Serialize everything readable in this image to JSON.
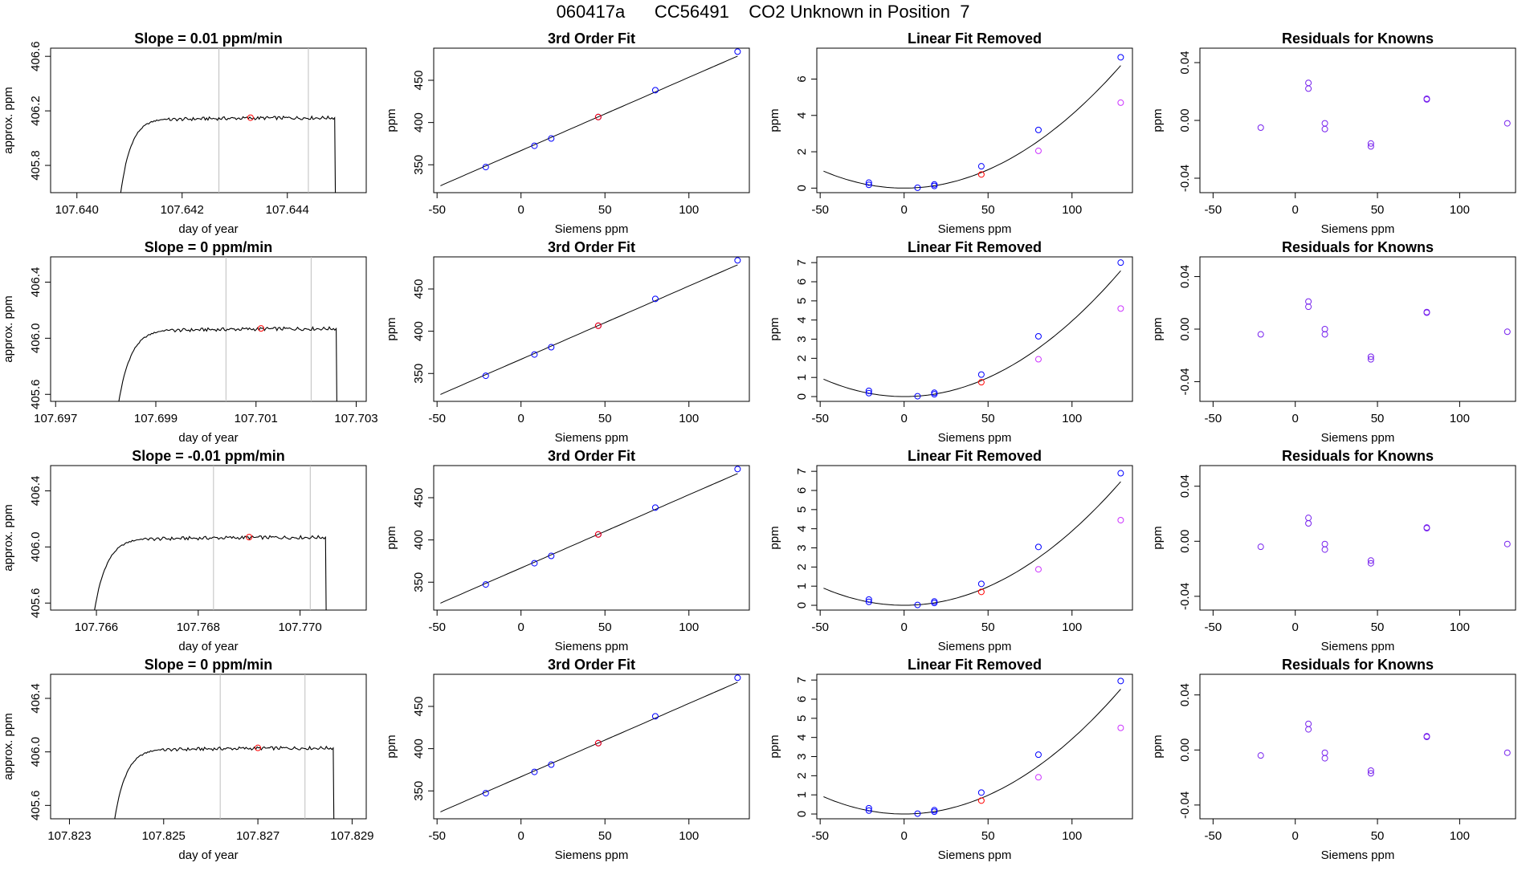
{
  "title": "060417a      CC56491    CO2 Unknown in Position  7",
  "colors": {
    "line": "#000000",
    "blue_points": "#0000ff",
    "red_points": "#ff0000",
    "magenta_points": "#cc33ff",
    "purple_points": "#7722ee",
    "cal_lines": "#bebebe"
  },
  "chart_data": [
    {
      "type": "line",
      "row": 0,
      "title": "Slope =  0.01  ppm/min",
      "xlabel": "day of year",
      "ylabel": "approx. ppm",
      "xlim": [
        107.6395,
        107.6455
      ],
      "xticks": [
        107.64,
        107.642,
        107.644
      ],
      "xtick_labels": [
        "107.640",
        "107.642",
        "107.644"
      ],
      "ylim": [
        405.6,
        406.66
      ],
      "yticks": [
        405.8,
        406.2,
        406.6
      ],
      "ytick_labels": [
        "405.8",
        "406.2",
        "406.6"
      ],
      "trace": {
        "start": 107.6408,
        "rise_end": 107.6417,
        "end": 107.6449,
        "base": 405.5,
        "plateau": 406.15
      },
      "cal_lines": [
        107.6427,
        107.6444
      ],
      "marker": {
        "x": 107.6433,
        "y": 406.15
      }
    },
    {
      "type": "scatter",
      "row": 0,
      "title": "3rd Order Fit",
      "xlabel": "Siemens ppm",
      "ylabel": "ppm",
      "xlim": [
        -52,
        136
      ],
      "xticks": [
        -50,
        0,
        50,
        100
      ],
      "ylim": [
        317,
        488
      ],
      "yticks": [
        350,
        400,
        450
      ],
      "curve": {
        "x0": -48,
        "x1": 129,
        "y0": 325.2,
        "slope": 0.8667
      },
      "blue": [
        [
          -21,
          347.3
        ],
        [
          8,
          372.5
        ],
        [
          18,
          381.1
        ],
        [
          46,
          406.5
        ],
        [
          80,
          438.3
        ],
        [
          129,
          483.9
        ]
      ],
      "red": [
        [
          46,
          406.5
        ]
      ]
    },
    {
      "type": "scatter",
      "row": 0,
      "title": "Linear Fit Removed",
      "xlabel": "Siemens ppm",
      "ylabel": "ppm",
      "xlim": [
        -52,
        136
      ],
      "xticks": [
        -50,
        0,
        50,
        100
      ],
      "ylim": [
        -0.25,
        7.7
      ],
      "yticks": [
        0,
        2,
        4,
        6
      ],
      "curve": {
        "x0": -48,
        "x1": 129,
        "k": 0.000405,
        "c": 0.0
      },
      "blue": [
        [
          -21,
          0.3
        ],
        [
          8,
          0.02
        ],
        [
          18,
          0.2
        ],
        [
          46,
          1.2
        ],
        [
          80,
          3.2
        ],
        [
          129,
          7.2
        ]
      ],
      "blue2": [
        [
          -21,
          0.18
        ],
        [
          18,
          0.12
        ]
      ],
      "red": [
        [
          46,
          0.75
        ]
      ],
      "magenta": [
        [
          80,
          2.05
        ],
        [
          129,
          4.7
        ]
      ]
    },
    {
      "type": "scatter",
      "row": 0,
      "title": "Residuals for Knowns",
      "xlabel": "Siemens ppm",
      "ylabel": "ppm",
      "xlim": [
        -58,
        134
      ],
      "xticks": [
        -50,
        0,
        50,
        100
      ],
      "ylim": [
        -0.05,
        0.05
      ],
      "yticks": [
        -0.04,
        0.0,
        0.04
      ],
      "ytick_labels": [
        "-0.04",
        "0.00",
        "0.04"
      ],
      "purple": [
        [
          -21,
          -0.005
        ],
        [
          8,
          0.026
        ],
        [
          8,
          0.022
        ],
        [
          18,
          -0.006
        ],
        [
          18,
          -0.002
        ],
        [
          46,
          -0.016
        ],
        [
          46,
          -0.018
        ],
        [
          80,
          0.015
        ],
        [
          80,
          0.0145
        ],
        [
          129,
          -0.002
        ]
      ]
    },
    {
      "type": "line",
      "row": 1,
      "title": "Slope =  0  ppm/min",
      "xlabel": "day of year",
      "ylabel": "approx. ppm",
      "xlim": [
        107.6969,
        107.7032
      ],
      "xticks": [
        107.697,
        107.699,
        107.701,
        107.703
      ],
      "xtick_labels": [
        "107.697",
        "107.699",
        "107.701",
        "107.703"
      ],
      "ylim": [
        405.55,
        406.58
      ],
      "yticks": [
        405.6,
        406.0,
        406.4
      ],
      "ytick_labels": [
        "405.6",
        "406.0",
        "406.4"
      ],
      "trace": {
        "start": 107.6982,
        "rise_end": 107.6993,
        "end": 107.7026,
        "base": 405.4,
        "plateau": 406.07
      },
      "cal_lines": [
        107.7004,
        107.7021
      ],
      "marker": {
        "x": 107.7011,
        "y": 406.07
      }
    },
    {
      "type": "scatter",
      "row": 1,
      "title": "3rd Order Fit",
      "xlabel": "Siemens ppm",
      "ylabel": "ppm",
      "xlim": [
        -52,
        136
      ],
      "xticks": [
        -50,
        0,
        50,
        100
      ],
      "ylim": [
        317,
        488
      ],
      "yticks": [
        350,
        400,
        450
      ],
      "curve": {
        "x0": -48,
        "x1": 129,
        "y0": 325.2,
        "slope": 0.8667
      },
      "blue": [
        [
          -21,
          347.3
        ],
        [
          8,
          372.5
        ],
        [
          18,
          381.1
        ],
        [
          46,
          406.5
        ],
        [
          80,
          438.3
        ],
        [
          129,
          483.9
        ]
      ],
      "red": [
        [
          46,
          406.5
        ]
      ]
    },
    {
      "type": "scatter",
      "row": 1,
      "title": "Linear Fit Removed",
      "xlabel": "Siemens ppm",
      "ylabel": "ppm",
      "xlim": [
        -52,
        136
      ],
      "xticks": [
        -50,
        0,
        50,
        100
      ],
      "ylim": [
        -0.25,
        7.3
      ],
      "yticks": [
        0,
        1,
        2,
        3,
        4,
        5,
        6,
        7
      ],
      "curve": {
        "x0": -48,
        "x1": 129,
        "k": 0.000395,
        "c": 0.0
      },
      "blue": [
        [
          -21,
          0.3
        ],
        [
          8,
          0.02
        ],
        [
          18,
          0.2
        ],
        [
          46,
          1.15
        ],
        [
          80,
          3.15
        ],
        [
          129,
          7.0
        ]
      ],
      "blue2": [
        [
          -21,
          0.18
        ],
        [
          18,
          0.12
        ]
      ],
      "red": [
        [
          46,
          0.75
        ]
      ],
      "magenta": [
        [
          80,
          1.95
        ],
        [
          129,
          4.6
        ]
      ]
    },
    {
      "type": "scatter",
      "row": 1,
      "title": "Residuals for Knowns",
      "xlabel": "Siemens ppm",
      "ylabel": "ppm",
      "xlim": [
        -58,
        134
      ],
      "xticks": [
        -50,
        0,
        50,
        100
      ],
      "ylim": [
        -0.055,
        0.055
      ],
      "yticks": [
        -0.04,
        0.0,
        0.04
      ],
      "ytick_labels": [
        "-0.04",
        "0.00",
        "0.04"
      ],
      "purple": [
        [
          -21,
          -0.004
        ],
        [
          8,
          0.021
        ],
        [
          8,
          0.017
        ],
        [
          18,
          -0.004
        ],
        [
          18,
          0.0
        ],
        [
          46,
          -0.021
        ],
        [
          46,
          -0.023
        ],
        [
          80,
          0.013
        ],
        [
          80,
          0.0125
        ],
        [
          129,
          -0.002
        ]
      ]
    },
    {
      "type": "line",
      "row": 2,
      "title": "Slope =  -0.01  ppm/min",
      "xlabel": "day of year",
      "ylabel": "approx. ppm",
      "xlim": [
        107.7651,
        107.7713
      ],
      "xticks": [
        107.766,
        107.768,
        107.77
      ],
      "xtick_labels": [
        "107.766",
        "107.768",
        "107.770"
      ],
      "ylim": [
        405.55,
        406.58
      ],
      "yticks": [
        405.6,
        406.0,
        406.4
      ],
      "ytick_labels": [
        "405.6",
        "406.0",
        "406.4"
      ],
      "trace": {
        "start": 107.7659,
        "rise_end": 107.767,
        "end": 107.7705,
        "base": 405.4,
        "plateau": 406.07
      },
      "cal_lines": [
        107.7683,
        107.7702
      ],
      "marker": {
        "x": 107.769,
        "y": 406.07
      }
    },
    {
      "type": "scatter",
      "row": 2,
      "title": "3rd Order Fit",
      "xlabel": "Siemens ppm",
      "ylabel": "ppm",
      "xlim": [
        -52,
        136
      ],
      "xticks": [
        -50,
        0,
        50,
        100
      ],
      "ylim": [
        317,
        488
      ],
      "yticks": [
        350,
        400,
        450
      ],
      "curve": {
        "x0": -48,
        "x1": 129,
        "y0": 325.2,
        "slope": 0.8667
      },
      "blue": [
        [
          -21,
          347.3
        ],
        [
          8,
          372.5
        ],
        [
          18,
          381.1
        ],
        [
          46,
          406.5
        ],
        [
          80,
          438.3
        ],
        [
          129,
          483.9
        ]
      ],
      "red": [
        [
          46,
          406.5
        ]
      ]
    },
    {
      "type": "scatter",
      "row": 2,
      "title": "Linear Fit Removed",
      "xlabel": "Siemens ppm",
      "ylabel": "ppm",
      "xlim": [
        -52,
        136
      ],
      "xticks": [
        -50,
        0,
        50,
        100
      ],
      "ylim": [
        -0.25,
        7.3
      ],
      "yticks": [
        0,
        1,
        2,
        3,
        4,
        5,
        6,
        7
      ],
      "curve": {
        "x0": -48,
        "x1": 129,
        "k": 0.000388,
        "c": 0.0
      },
      "blue": [
        [
          -21,
          0.3
        ],
        [
          8,
          0.02
        ],
        [
          18,
          0.2
        ],
        [
          46,
          1.12
        ],
        [
          80,
          3.05
        ],
        [
          129,
          6.9
        ]
      ],
      "blue2": [
        [
          -21,
          0.18
        ],
        [
          18,
          0.12
        ]
      ],
      "red": [
        [
          46,
          0.7
        ]
      ],
      "magenta": [
        [
          80,
          1.88
        ],
        [
          129,
          4.45
        ]
      ]
    },
    {
      "type": "scatter",
      "row": 2,
      "title": "Residuals for Knowns",
      "xlabel": "Siemens ppm",
      "ylabel": "ppm",
      "xlim": [
        -58,
        134
      ],
      "xticks": [
        -50,
        0,
        50,
        100
      ],
      "ylim": [
        -0.05,
        0.055
      ],
      "yticks": [
        -0.04,
        0.0,
        0.04
      ],
      "ytick_labels": [
        "-0.04",
        "0.00",
        "0.04"
      ],
      "purple": [
        [
          -21,
          -0.004
        ],
        [
          8,
          0.017
        ],
        [
          8,
          0.013
        ],
        [
          18,
          -0.006
        ],
        [
          18,
          -0.002
        ],
        [
          46,
          -0.014
        ],
        [
          46,
          -0.016
        ],
        [
          80,
          0.01
        ],
        [
          80,
          0.0095
        ],
        [
          129,
          -0.002
        ]
      ]
    },
    {
      "type": "line",
      "row": 3,
      "title": "Slope =  0  ppm/min",
      "xlabel": "day of year",
      "ylabel": "approx. ppm",
      "xlim": [
        107.8226,
        107.8293
      ],
      "xticks": [
        107.823,
        107.825,
        107.827,
        107.829
      ],
      "xtick_labels": [
        "107.823",
        "107.825",
        "107.827",
        "107.829"
      ],
      "ylim": [
        405.5,
        406.58
      ],
      "yticks": [
        405.6,
        406.0,
        406.4
      ],
      "ytick_labels": [
        "405.6",
        "406.0",
        "406.4"
      ],
      "trace": {
        "start": 107.8239,
        "rise_end": 107.825,
        "end": 107.8286,
        "base": 405.35,
        "plateau": 406.03
      },
      "cal_lines": [
        107.8262,
        107.828
      ],
      "marker": {
        "x": 107.827,
        "y": 406.03
      }
    },
    {
      "type": "scatter",
      "row": 3,
      "title": "3rd Order Fit",
      "xlabel": "Siemens ppm",
      "ylabel": "ppm",
      "xlim": [
        -52,
        136
      ],
      "xticks": [
        -50,
        0,
        50,
        100
      ],
      "ylim": [
        317,
        488
      ],
      "yticks": [
        350,
        400,
        450
      ],
      "curve": {
        "x0": -48,
        "x1": 129,
        "y0": 325.2,
        "slope": 0.8667
      },
      "blue": [
        [
          -21,
          347.3
        ],
        [
          8,
          372.5
        ],
        [
          18,
          381.1
        ],
        [
          46,
          406.5
        ],
        [
          80,
          438.3
        ],
        [
          129,
          483.9
        ]
      ],
      "red": [
        [
          46,
          406.5
        ]
      ]
    },
    {
      "type": "scatter",
      "row": 3,
      "title": "Linear Fit Removed",
      "xlabel": "Siemens ppm",
      "ylabel": "ppm",
      "xlim": [
        -52,
        136
      ],
      "xticks": [
        -50,
        0,
        50,
        100
      ],
      "ylim": [
        -0.25,
        7.3
      ],
      "yticks": [
        0,
        1,
        2,
        3,
        4,
        5,
        6,
        7
      ],
      "curve": {
        "x0": -48,
        "x1": 129,
        "k": 0.000392,
        "c": 0.0
      },
      "blue": [
        [
          -21,
          0.3
        ],
        [
          8,
          0.02
        ],
        [
          18,
          0.2
        ],
        [
          46,
          1.12
        ],
        [
          80,
          3.1
        ],
        [
          129,
          6.95
        ]
      ],
      "blue2": [
        [
          -21,
          0.18
        ],
        [
          18,
          0.12
        ]
      ],
      "red": [
        [
          46,
          0.7
        ]
      ],
      "magenta": [
        [
          80,
          1.92
        ],
        [
          129,
          4.5
        ]
      ]
    },
    {
      "type": "scatter",
      "row": 3,
      "title": "Residuals for Knowns",
      "xlabel": "Siemens ppm",
      "ylabel": "ppm",
      "xlim": [
        -58,
        134
      ],
      "xticks": [
        -50,
        0,
        50,
        100
      ],
      "ylim": [
        -0.05,
        0.055
      ],
      "yticks": [
        -0.04,
        0.0,
        0.04
      ],
      "ytick_labels": [
        "-0.04",
        "0.00",
        "0.04"
      ],
      "purple": [
        [
          -21,
          -0.004
        ],
        [
          8,
          0.019
        ],
        [
          8,
          0.015
        ],
        [
          18,
          -0.006
        ],
        [
          18,
          -0.002
        ],
        [
          46,
          -0.015
        ],
        [
          46,
          -0.017
        ],
        [
          80,
          0.01
        ],
        [
          80,
          0.0095
        ],
        [
          129,
          -0.002
        ]
      ]
    }
  ]
}
